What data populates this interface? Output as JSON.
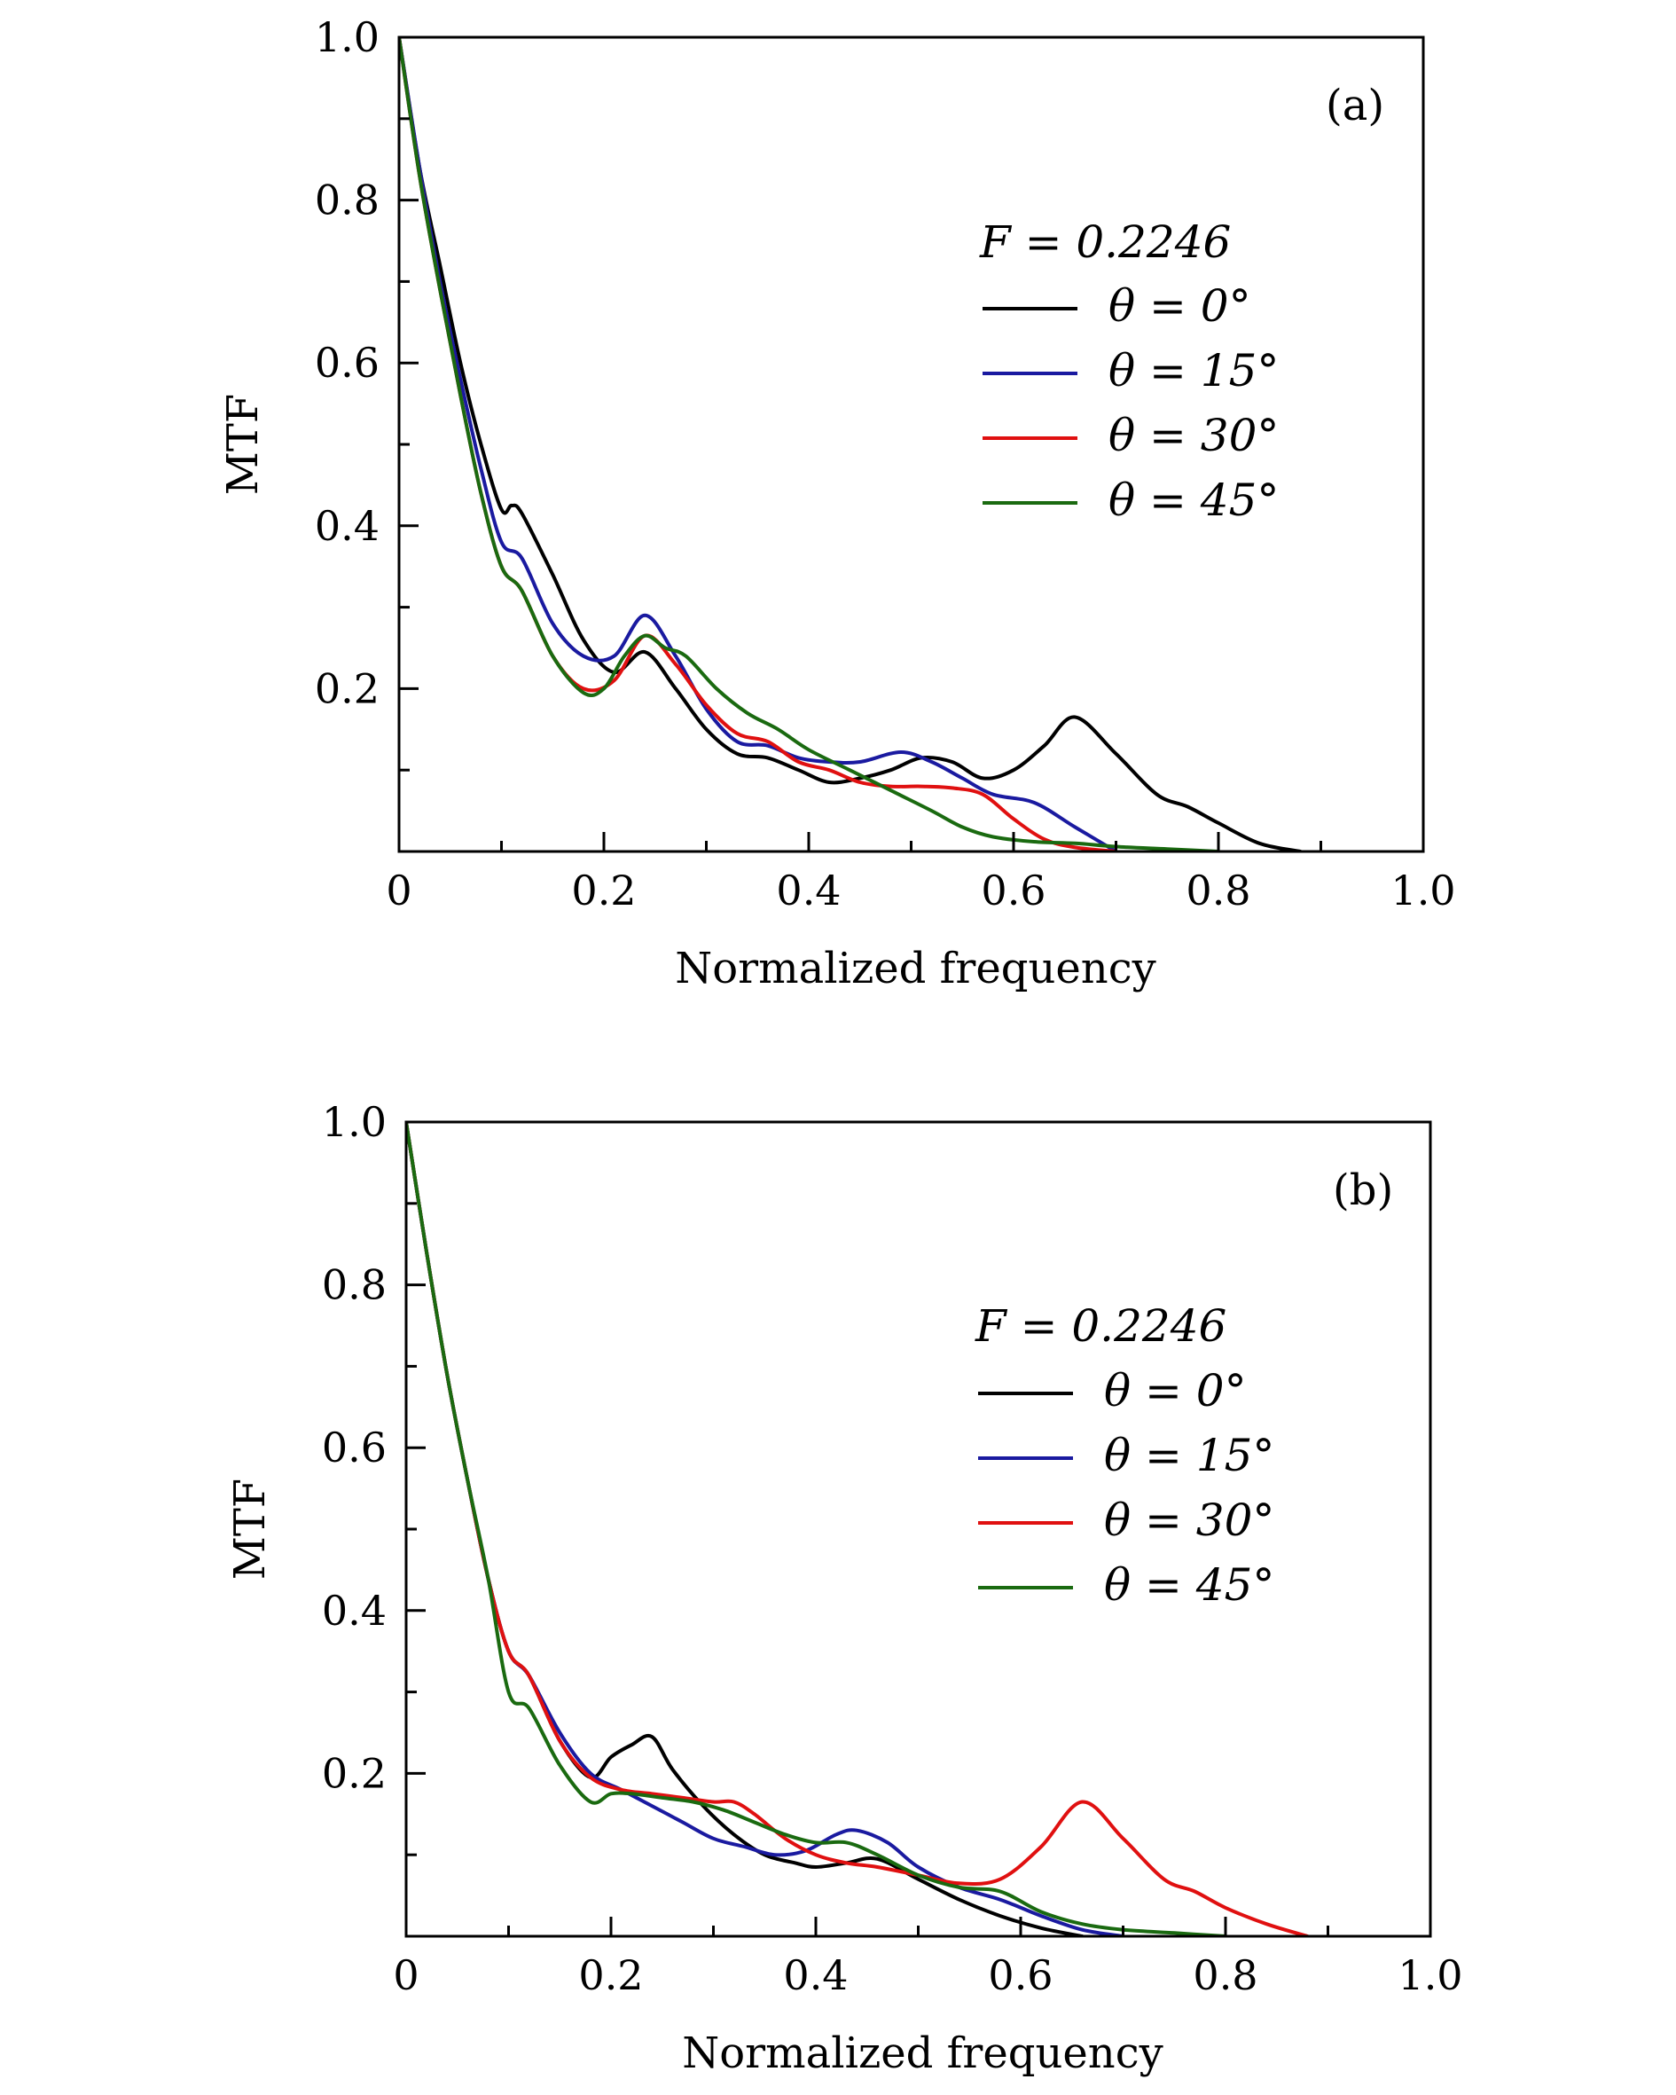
{
  "chart_data": [
    {
      "type": "line",
      "panel_label": "(a)",
      "xlabel": "Normalized frequency",
      "ylabel": "MTF",
      "xlim": [
        0,
        1.0
      ],
      "ylim": [
        0,
        1.0
      ],
      "xticks": [
        0,
        0.2,
        0.4,
        0.6,
        0.8,
        1.0
      ],
      "xtick_labels": [
        "0",
        "0.2",
        "0.4",
        "0.6",
        "0.8",
        "1.0"
      ],
      "yticks": [
        0.2,
        0.4,
        0.6,
        0.8,
        1.0
      ],
      "ytick_labels": [
        "0.2",
        "0.4",
        "0.6",
        "0.8",
        "1.0"
      ],
      "legend_title": "F = 0.2246",
      "legend_position": "upper-right",
      "series": [
        {
          "name": "θ = 0°",
          "color": "#000000",
          "x": [
            0,
            0.02,
            0.04,
            0.06,
            0.08,
            0.1,
            0.11,
            0.12,
            0.15,
            0.18,
            0.21,
            0.24,
            0.27,
            0.3,
            0.33,
            0.36,
            0.39,
            0.42,
            0.45,
            0.48,
            0.51,
            0.54,
            0.57,
            0.6,
            0.63,
            0.66,
            0.7,
            0.74,
            0.77,
            0.8,
            0.84,
            0.88
          ],
          "y": [
            1.0,
            0.84,
            0.72,
            0.6,
            0.5,
            0.42,
            0.425,
            0.415,
            0.34,
            0.26,
            0.22,
            0.245,
            0.2,
            0.15,
            0.12,
            0.115,
            0.1,
            0.085,
            0.09,
            0.1,
            0.115,
            0.11,
            0.09,
            0.1,
            0.13,
            0.165,
            0.12,
            0.07,
            0.055,
            0.035,
            0.01,
            0.0
          ]
        },
        {
          "name": "θ = 15°",
          "color": "#1a1aa0",
          "x": [
            0,
            0.02,
            0.04,
            0.06,
            0.08,
            0.1,
            0.12,
            0.15,
            0.18,
            0.21,
            0.24,
            0.27,
            0.3,
            0.33,
            0.36,
            0.39,
            0.42,
            0.45,
            0.49,
            0.52,
            0.55,
            0.58,
            0.62,
            0.66,
            0.7
          ],
          "y": [
            1.0,
            0.84,
            0.7,
            0.58,
            0.47,
            0.38,
            0.36,
            0.28,
            0.24,
            0.24,
            0.29,
            0.24,
            0.175,
            0.135,
            0.13,
            0.115,
            0.11,
            0.11,
            0.122,
            0.11,
            0.09,
            0.07,
            0.06,
            0.03,
            0.0
          ]
        },
        {
          "name": "θ = 30°",
          "color": "#e01010",
          "x": [
            0,
            0.02,
            0.04,
            0.06,
            0.08,
            0.1,
            0.12,
            0.15,
            0.18,
            0.21,
            0.24,
            0.27,
            0.3,
            0.33,
            0.36,
            0.39,
            0.42,
            0.45,
            0.48,
            0.51,
            0.54,
            0.57,
            0.6,
            0.63,
            0.66,
            0.7
          ],
          "y": [
            1.0,
            0.83,
            0.69,
            0.56,
            0.44,
            0.35,
            0.32,
            0.24,
            0.2,
            0.21,
            0.265,
            0.23,
            0.18,
            0.145,
            0.135,
            0.11,
            0.1,
            0.085,
            0.08,
            0.08,
            0.078,
            0.07,
            0.04,
            0.015,
            0.005,
            0.0
          ]
        },
        {
          "name": "θ = 45°",
          "color": "#1a6a10",
          "x": [
            0,
            0.02,
            0.04,
            0.06,
            0.08,
            0.1,
            0.12,
            0.15,
            0.18,
            0.2,
            0.22,
            0.24,
            0.26,
            0.28,
            0.31,
            0.34,
            0.37,
            0.4,
            0.44,
            0.48,
            0.52,
            0.55,
            0.58,
            0.62,
            0.66,
            0.7,
            0.75,
            0.8
          ],
          "y": [
            1.0,
            0.83,
            0.69,
            0.56,
            0.44,
            0.35,
            0.32,
            0.24,
            0.195,
            0.2,
            0.24,
            0.265,
            0.25,
            0.24,
            0.2,
            0.17,
            0.15,
            0.125,
            0.1,
            0.075,
            0.05,
            0.03,
            0.018,
            0.012,
            0.01,
            0.006,
            0.003,
            0.0
          ]
        }
      ]
    },
    {
      "type": "line",
      "panel_label": "(b)",
      "xlabel": "Normalized frequency",
      "ylabel": "MTF",
      "xlim": [
        0,
        1.0
      ],
      "ylim": [
        0,
        1.0
      ],
      "xticks": [
        0,
        0.2,
        0.4,
        0.6,
        0.8,
        1.0
      ],
      "xtick_labels": [
        "0",
        "0.2",
        "0.4",
        "0.6",
        "0.8",
        "1.0"
      ],
      "yticks": [
        0.2,
        0.4,
        0.6,
        0.8,
        1.0
      ],
      "ytick_labels": [
        "0.2",
        "0.4",
        "0.6",
        "0.8",
        "1.0"
      ],
      "legend_title": "F = 0.2246",
      "legend_position": "upper-right",
      "series": [
        {
          "name": "θ = 0°",
          "color": "#000000",
          "x": [
            0,
            0.02,
            0.04,
            0.06,
            0.08,
            0.1,
            0.12,
            0.15,
            0.18,
            0.2,
            0.22,
            0.24,
            0.26,
            0.29,
            0.32,
            0.35,
            0.38,
            0.4,
            0.43,
            0.46,
            0.5,
            0.54,
            0.58,
            0.62,
            0.66
          ],
          "y": [
            1.0,
            0.84,
            0.69,
            0.56,
            0.44,
            0.35,
            0.32,
            0.24,
            0.195,
            0.22,
            0.235,
            0.245,
            0.205,
            0.16,
            0.125,
            0.1,
            0.09,
            0.085,
            0.09,
            0.095,
            0.07,
            0.045,
            0.025,
            0.01,
            0.0
          ]
        },
        {
          "name": "θ = 15°",
          "color": "#1a1aa0",
          "x": [
            0,
            0.02,
            0.04,
            0.06,
            0.08,
            0.1,
            0.12,
            0.15,
            0.18,
            0.21,
            0.24,
            0.27,
            0.3,
            0.33,
            0.36,
            0.39,
            0.42,
            0.44,
            0.47,
            0.5,
            0.54,
            0.58,
            0.62,
            0.66,
            0.7
          ],
          "y": [
            1.0,
            0.84,
            0.69,
            0.56,
            0.44,
            0.35,
            0.32,
            0.25,
            0.2,
            0.18,
            0.16,
            0.14,
            0.12,
            0.11,
            0.1,
            0.105,
            0.125,
            0.13,
            0.115,
            0.085,
            0.06,
            0.045,
            0.025,
            0.008,
            0.0
          ]
        },
        {
          "name": "θ = 30°",
          "color": "#e01010",
          "x": [
            0,
            0.02,
            0.04,
            0.06,
            0.08,
            0.1,
            0.12,
            0.15,
            0.18,
            0.21,
            0.24,
            0.27,
            0.3,
            0.32,
            0.34,
            0.37,
            0.4,
            0.43,
            0.46,
            0.5,
            0.54,
            0.58,
            0.62,
            0.66,
            0.7,
            0.74,
            0.77,
            0.8,
            0.84,
            0.88
          ],
          "y": [
            1.0,
            0.84,
            0.69,
            0.56,
            0.44,
            0.35,
            0.32,
            0.24,
            0.195,
            0.18,
            0.175,
            0.17,
            0.165,
            0.165,
            0.15,
            0.12,
            0.1,
            0.09,
            0.085,
            0.075,
            0.065,
            0.07,
            0.11,
            0.165,
            0.12,
            0.07,
            0.055,
            0.035,
            0.015,
            0.0
          ]
        },
        {
          "name": "θ = 45°",
          "color": "#1a6a10",
          "x": [
            0,
            0.02,
            0.04,
            0.06,
            0.08,
            0.1,
            0.12,
            0.15,
            0.18,
            0.2,
            0.22,
            0.25,
            0.28,
            0.31,
            0.34,
            0.37,
            0.4,
            0.43,
            0.46,
            0.5,
            0.54,
            0.58,
            0.62,
            0.66,
            0.7,
            0.75,
            0.8
          ],
          "y": [
            1.0,
            0.84,
            0.69,
            0.56,
            0.44,
            0.3,
            0.28,
            0.21,
            0.165,
            0.175,
            0.175,
            0.17,
            0.165,
            0.155,
            0.14,
            0.125,
            0.115,
            0.115,
            0.1,
            0.075,
            0.06,
            0.055,
            0.03,
            0.015,
            0.008,
            0.004,
            0.0
          ]
        }
      ]
    }
  ]
}
